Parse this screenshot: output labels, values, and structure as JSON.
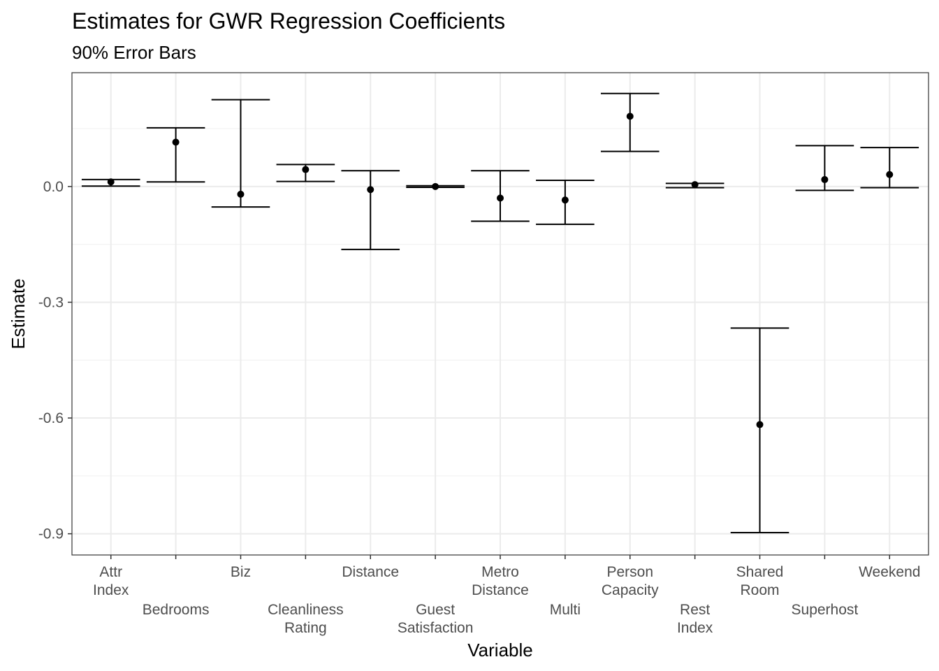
{
  "chart_data": {
    "type": "errorbar",
    "title": "Estimates for GWR Regression Coefficients",
    "subtitle": "90% Error Bars",
    "xlabel": "Variable",
    "ylabel": "Estimate",
    "ylim": [
      -0.955,
      0.295
    ],
    "yticks": [
      0.0,
      -0.3,
      -0.6,
      -0.9
    ],
    "ytick_labels": [
      "0.0",
      "-0.3",
      "-0.6",
      "-0.9"
    ],
    "grid": true,
    "categories": [
      [
        "Attr",
        "Index"
      ],
      [
        "Bedrooms"
      ],
      [
        "Biz"
      ],
      [
        "Cleanliness",
        "Rating"
      ],
      [
        "Distance"
      ],
      [
        "Guest",
        "Satisfaction"
      ],
      [
        "Metro",
        "Distance"
      ],
      [
        "Multi"
      ],
      [
        "Person",
        "Capacity"
      ],
      [
        "Rest",
        "Index"
      ],
      [
        "Shared",
        "Room"
      ],
      [
        "Superhost"
      ],
      [
        "Weekend"
      ]
    ],
    "estimate": [
      0.012,
      0.115,
      -0.02,
      0.044,
      -0.008,
      0.0,
      -0.03,
      -0.035,
      0.182,
      0.005,
      -0.617,
      0.018,
      0.031
    ],
    "lower": [
      0.001,
      0.012,
      -0.053,
      0.013,
      -0.163,
      -0.002,
      -0.09,
      -0.098,
      0.091,
      -0.003,
      -0.897,
      -0.01,
      -0.003
    ],
    "upper": [
      0.018,
      0.152,
      0.225,
      0.057,
      0.041,
      0.002,
      0.041,
      0.016,
      0.241,
      0.008,
      -0.367,
      0.106,
      0.101
    ]
  }
}
